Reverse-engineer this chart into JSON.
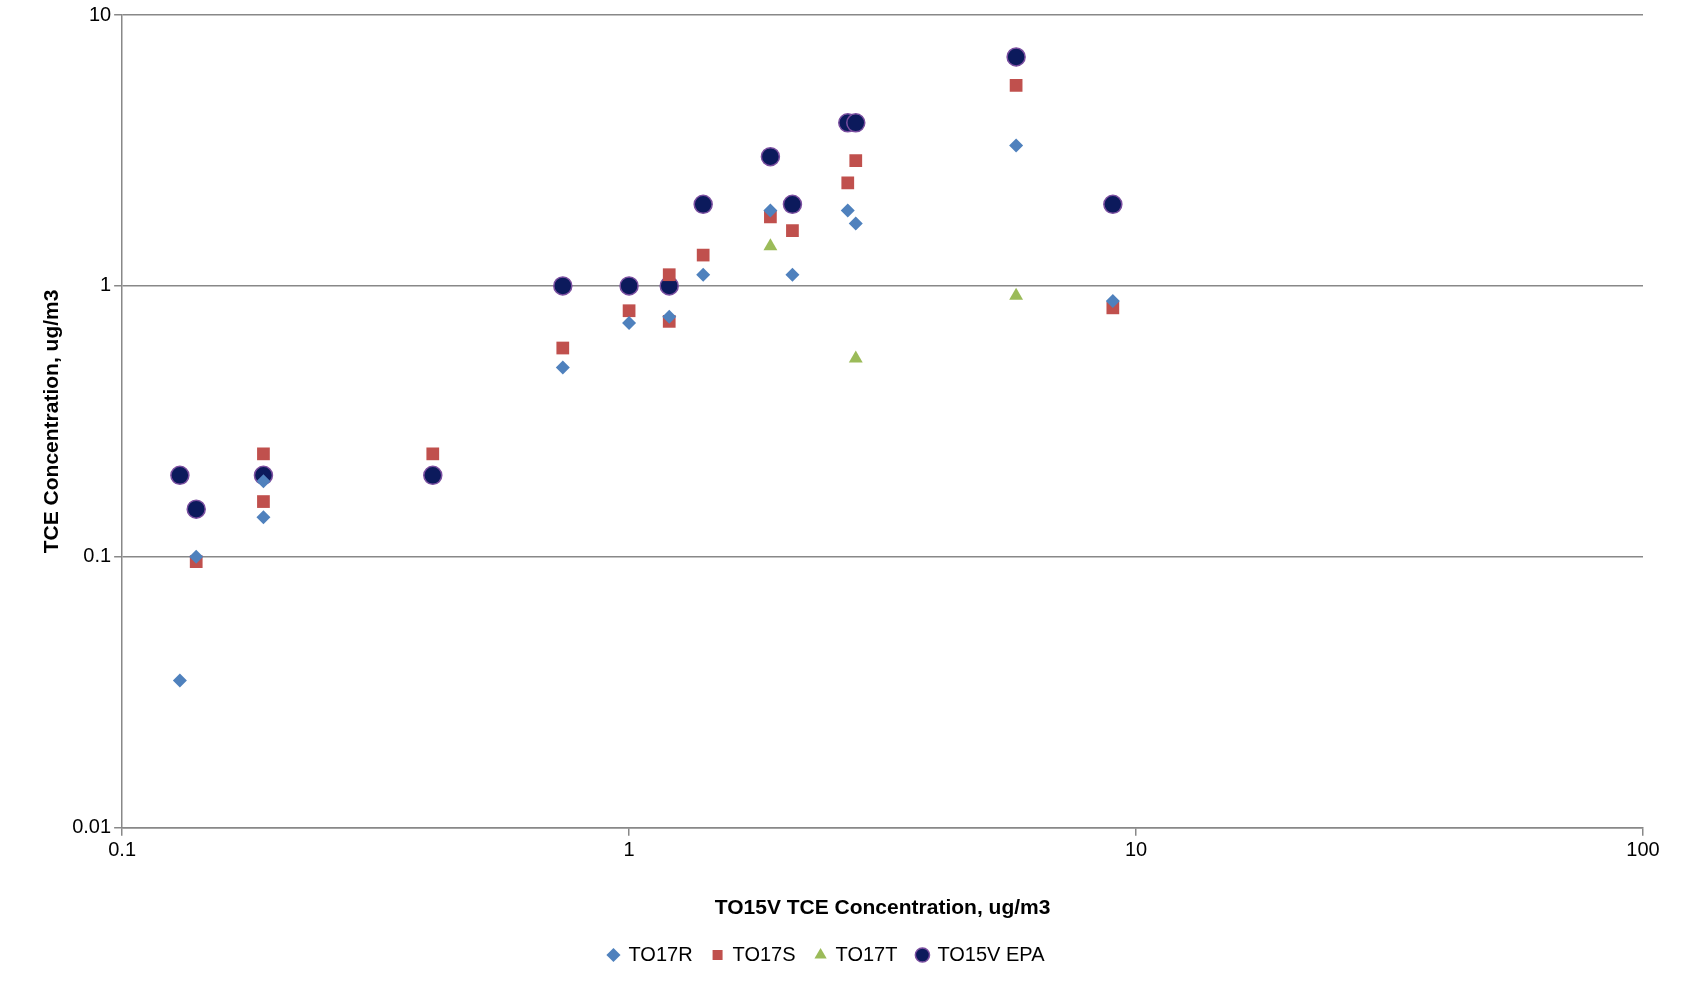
{
  "chart_data": {
    "type": "scatter",
    "xlabel": "TO15V TCE Concentration, ug/m3",
    "ylabel": "TCE Concentration, ug/m3",
    "log": "xy",
    "grid": "y",
    "legend": "bottom",
    "xlim": [
      0.1,
      100
    ],
    "xticks": [
      0.1,
      1,
      10,
      100
    ],
    "ylim": [
      0.01,
      10
    ],
    "yticks": [
      0.01,
      0.1,
      1,
      10
    ],
    "series": [
      {
        "name": "TO17R",
        "color": "#4f81bd",
        "marker": "diamond",
        "x": [
          0.13,
          0.14,
          0.19,
          0.19,
          0.74,
          1.0,
          1.2,
          1.4,
          1.9,
          2.1,
          2.7,
          2.8,
          5.8,
          9.0
        ],
        "values": [
          0.035,
          0.1,
          0.14,
          0.19,
          0.5,
          0.73,
          0.77,
          1.1,
          1.9,
          1.1,
          1.9,
          1.7,
          3.3,
          0.88
        ]
      },
      {
        "name": "TO17S",
        "color": "#c0504d",
        "marker": "square",
        "x": [
          0.14,
          0.19,
          0.19,
          0.41,
          0.74,
          1.0,
          1.2,
          1.2,
          1.4,
          1.9,
          2.1,
          2.7,
          2.8,
          5.8,
          9.0
        ],
        "values": [
          0.096,
          0.24,
          0.16,
          0.24,
          0.59,
          0.81,
          1.1,
          0.74,
          1.3,
          1.8,
          1.6,
          2.4,
          2.9,
          5.5,
          0.83
        ]
      },
      {
        "name": "TO17T",
        "color": "#9bbb59",
        "marker": "triangle",
        "x": [
          1.9,
          2.8,
          5.8
        ],
        "values": [
          1.4,
          0.54,
          0.92
        ]
      },
      {
        "name": "TO15V EPA",
        "color": "#0c1a5c",
        "marker": "circle",
        "x": [
          0.13,
          0.14,
          0.19,
          0.41,
          0.74,
          1.0,
          1.2,
          1.4,
          1.9,
          2.1,
          2.7,
          2.8,
          5.8,
          9.0
        ],
        "values": [
          0.2,
          0.15,
          0.2,
          0.2,
          1,
          1,
          1,
          2,
          3,
          2,
          4,
          4,
          7,
          2
        ]
      }
    ]
  }
}
